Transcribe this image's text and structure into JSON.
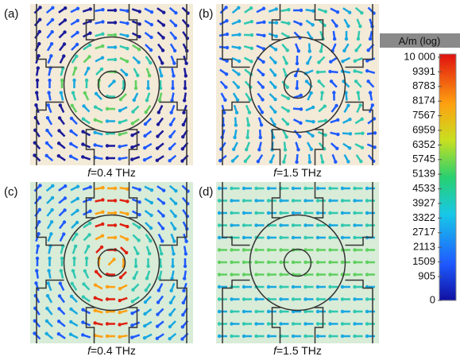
{
  "panels": [
    {
      "label": "(a)",
      "caption": {
        "variable": "f",
        "text": "=0.4 THz"
      }
    },
    {
      "label": "(b)",
      "caption": {
        "variable": "f",
        "text": "=1.5 THz"
      }
    },
    {
      "label": "(c)",
      "caption": {
        "variable": "f",
        "text": "=0.4 THz"
      }
    },
    {
      "label": "(d)",
      "caption": {
        "variable": "f",
        "text": "=1.5 THz"
      }
    }
  ],
  "colorbar": {
    "unit": "A/m (log)",
    "ticks": [
      {
        "value": 10000,
        "label": "10 000"
      },
      9391,
      8783,
      8174,
      7567,
      6959,
      6352,
      5745,
      5139,
      4533,
      3927,
      3322,
      2717,
      2113,
      1509,
      905,
      0
    ]
  }
}
